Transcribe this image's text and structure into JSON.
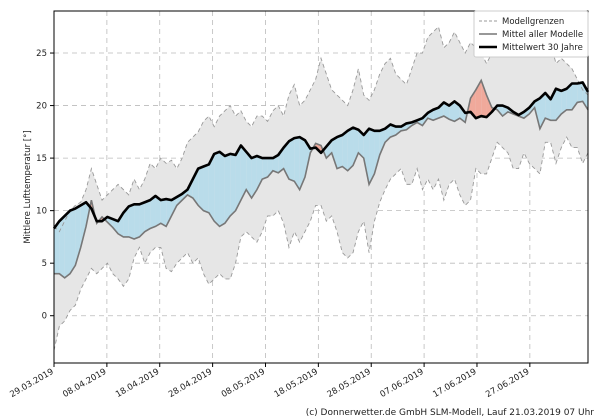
{
  "chart_data": {
    "type": "line",
    "ylabel": "Mittlere Lufttemperatur [°]",
    "ylim": [
      -4.5,
      29
    ],
    "yticks": [
      0,
      5,
      10,
      15,
      20,
      25
    ],
    "grid": true,
    "legend_position": "top-right",
    "x_start": "2019-03-29",
    "x_end": "2019-07-08",
    "xtick_labels": [
      "29.03.2019",
      "08.04.2019",
      "18.04.2019",
      "28.04.2019",
      "08.05.2019",
      "18.05.2019",
      "28.05.2019",
      "07.06.2019",
      "17.06.2019",
      "27.06.2019"
    ],
    "colors": {
      "band_fill": "#e6e6e6",
      "band_edge": "#999999",
      "mean_models": "#777777",
      "mean_30y": "#000000",
      "below": "#b9dcea",
      "above": "#f0a99b"
    },
    "series": [
      {
        "name": "Mittelwert 30 Jahre",
        "values": [
          8.3,
          9.0,
          9.5,
          10.0,
          10.2,
          10.5,
          10.8,
          10.2,
          9.0,
          9.0,
          9.4,
          9.2,
          9.0,
          9.8,
          10.4,
          10.6,
          10.6,
          10.8,
          11.0,
          11.4,
          11.0,
          11.1,
          11.0,
          11.3,
          11.6,
          12.0,
          13.0,
          14.0,
          14.2,
          14.4,
          15.4,
          15.6,
          15.2,
          15.4,
          15.3,
          16.2,
          15.6,
          15.0,
          15.2,
          15.0,
          15.0,
          15.0,
          15.3,
          16.0,
          16.6,
          16.9,
          17.0,
          16.7,
          15.9,
          16.0,
          15.5,
          16.1,
          16.7,
          17.0,
          17.2,
          17.6,
          17.9,
          17.7,
          17.2,
          17.8,
          17.6,
          17.6,
          17.8,
          18.2,
          18.0,
          18.0,
          18.3,
          18.4,
          18.6,
          18.8,
          19.3,
          19.6,
          19.8,
          20.3,
          20.0,
          20.4,
          20.0,
          19.3,
          19.4,
          18.8,
          19.0,
          18.9,
          19.4,
          20.0,
          20.0,
          19.8,
          19.4,
          19.1,
          19.4,
          19.8,
          20.4,
          20.7,
          21.2,
          20.6,
          21.6,
          21.4,
          21.6,
          22.1,
          22.1,
          22.2,
          21.3
        ]
      },
      {
        "name": "Mittel aller Modelle",
        "values": [
          4.0,
          4.0,
          3.6,
          4.0,
          4.8,
          6.5,
          8.5,
          11.0,
          8.8,
          9.4,
          8.9,
          8.4,
          7.8,
          7.5,
          7.5,
          7.3,
          7.5,
          8.0,
          8.3,
          8.5,
          8.8,
          8.5,
          9.5,
          10.5,
          11.0,
          11.5,
          11.2,
          10.5,
          10.0,
          9.8,
          9.0,
          8.5,
          8.8,
          9.5,
          10.0,
          11.0,
          12.0,
          11.2,
          12.0,
          13.0,
          13.2,
          13.8,
          13.6,
          14.0,
          13.0,
          12.8,
          12.0,
          13.2,
          15.5,
          16.4,
          16.2,
          15.0,
          15.5,
          14.0,
          14.2,
          13.8,
          14.3,
          15.5,
          15.0,
          12.5,
          13.5,
          15.3,
          16.5,
          17.0,
          17.2,
          17.6,
          17.7,
          18.1,
          18.4,
          18.1,
          18.8,
          18.6,
          18.8,
          19.0,
          18.7,
          18.5,
          18.8,
          18.4,
          20.7,
          21.5,
          22.4,
          21.0,
          19.8,
          19.6,
          19.0,
          19.4,
          19.2,
          19.0,
          18.8,
          19.2,
          19.8,
          17.8,
          18.8,
          18.6,
          18.6,
          19.2,
          19.6,
          19.6,
          20.3,
          20.4,
          19.6
        ]
      },
      {
        "name": "Modellgrenzen (unten)",
        "values": [
          -3.3,
          -1.0,
          -0.5,
          0.5,
          1.0,
          2.5,
          3.5,
          4.5,
          4.0,
          4.5,
          5.0,
          4.0,
          3.5,
          2.8,
          3.5,
          5.5,
          6.5,
          5.0,
          6.0,
          6.5,
          6.5,
          4.5,
          4.2,
          5.0,
          5.5,
          6.0,
          5.0,
          5.5,
          4.0,
          3.0,
          3.5,
          4.0,
          3.5,
          3.5,
          5.0,
          7.5,
          8.0,
          7.5,
          7.0,
          8.0,
          9.5,
          9.5,
          10.0,
          8.8,
          6.5,
          8.0,
          7.0,
          8.0,
          9.0,
          10.5,
          10.5,
          9.0,
          9.5,
          8.0,
          6.0,
          5.5,
          6.0,
          8.0,
          9.0,
          6.0,
          9.0,
          10.8,
          12.0,
          13.0,
          13.5,
          14.0,
          12.5,
          12.5,
          14.0,
          12.0,
          13.0,
          12.0,
          13.0,
          11.0,
          12.5,
          13.0,
          11.5,
          10.5,
          11.0,
          14.0,
          13.5,
          13.5,
          15.0,
          16.5,
          16.0,
          15.5,
          14.0,
          14.0,
          15.5,
          14.5,
          14.0,
          13.5,
          16.5,
          16.5,
          14.5,
          16.0,
          17.0,
          16.0,
          16.0,
          14.5,
          15.5
        ]
      },
      {
        "name": "Modellgrenzen (oben)",
        "values": [
          8.5,
          8.0,
          9.0,
          10.0,
          10.5,
          10.8,
          12.0,
          14.0,
          12.5,
          11.0,
          11.5,
          12.0,
          12.5,
          12.0,
          11.5,
          13.0,
          12.0,
          13.0,
          14.5,
          14.0,
          15.0,
          14.5,
          14.8,
          14.0,
          15.0,
          16.5,
          17.0,
          17.5,
          18.5,
          19.0,
          18.0,
          19.0,
          19.5,
          20.0,
          19.0,
          19.5,
          18.5,
          18.0,
          19.0,
          19.0,
          18.5,
          19.5,
          20.0,
          19.0,
          21.0,
          22.0,
          20.0,
          20.5,
          21.5,
          22.5,
          24.5,
          23.0,
          21.5,
          21.0,
          20.5,
          20.0,
          21.5,
          23.5,
          21.0,
          20.5,
          21.5,
          23.0,
          24.0,
          24.5,
          23.0,
          22.5,
          22.0,
          23.5,
          25.0,
          25.0,
          26.5,
          27.0,
          27.5,
          25.5,
          26.0,
          27.0,
          26.0,
          25.0,
          26.0,
          25.5,
          25.0,
          24.0,
          25.0,
          27.0,
          28.0,
          27.5,
          26.5,
          26.0,
          27.0,
          26.0,
          25.5,
          26.5,
          27.0,
          26.0,
          24.0,
          24.5,
          24.0,
          23.5,
          22.5,
          21.5,
          21.0
        ]
      }
    ]
  },
  "legend": {
    "items": [
      {
        "label": "Modellgrenzen",
        "style": "dashed"
      },
      {
        "label": "Mittel aller Modelle",
        "style": "solid-gray"
      },
      {
        "label": "Mittelwert 30 Jahre",
        "style": "solid-black"
      }
    ]
  },
  "footer": "(c) Donnerwetter.de GmbH SLM-Modell, Lauf 21.03.2019 07 Uhr"
}
